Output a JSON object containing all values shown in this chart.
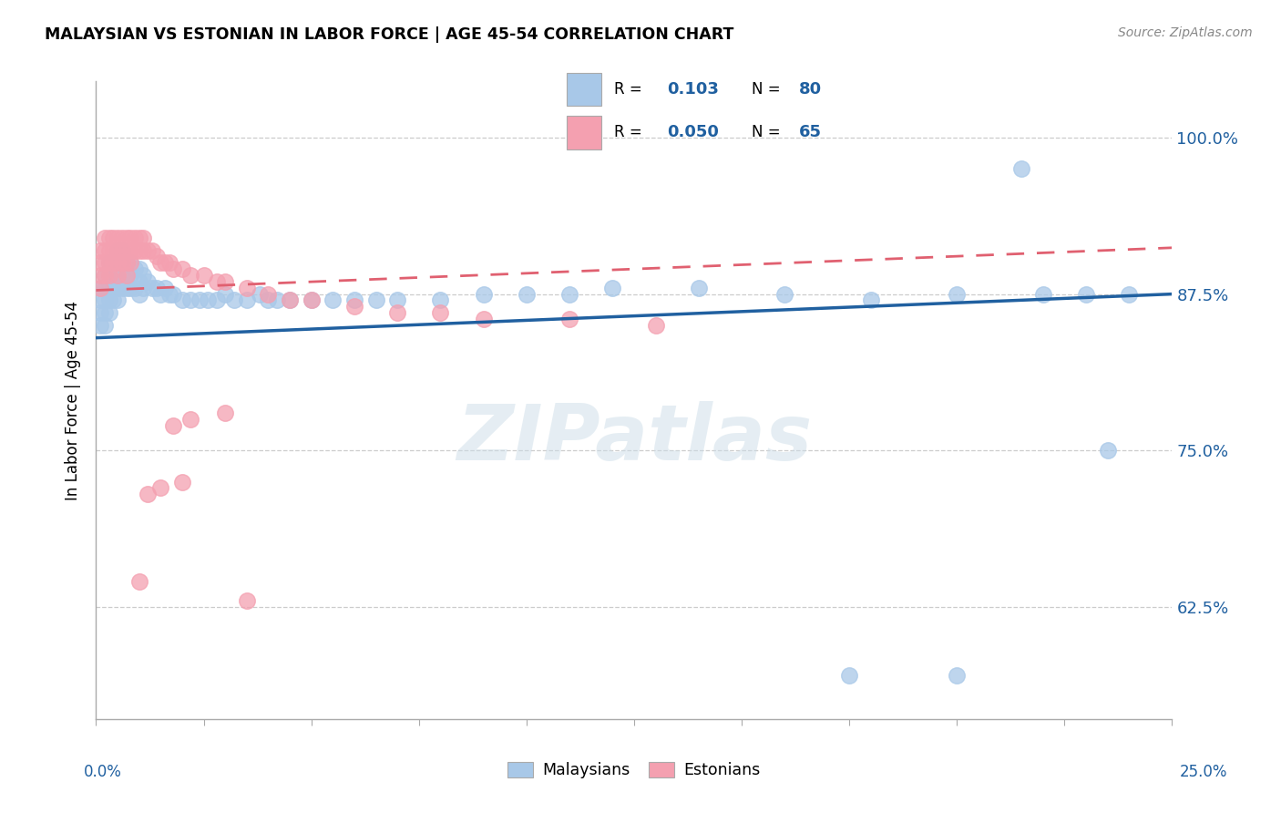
{
  "title": "MALAYSIAN VS ESTONIAN IN LABOR FORCE | AGE 45-54 CORRELATION CHART",
  "source": "Source: ZipAtlas.com",
  "ylabel": "In Labor Force | Age 45-54",
  "ytick_labels": [
    "62.5%",
    "75.0%",
    "87.5%",
    "100.0%"
  ],
  "ytick_values": [
    0.625,
    0.75,
    0.875,
    1.0
  ],
  "xmin": 0.0,
  "xmax": 0.25,
  "ymin": 0.535,
  "ymax": 1.045,
  "blue_scatter_color": "#a8c8e8",
  "pink_scatter_color": "#f4a0b0",
  "blue_line_color": "#2060a0",
  "pink_line_color": "#e06070",
  "label_color": "#2060a0",
  "legend_R_blue": "0.103",
  "legend_N_blue": "80",
  "legend_R_pink": "0.050",
  "legend_N_pink": "65",
  "watermark": "ZIPatlas",
  "grid_color": "#cccccc",
  "blue_x": [
    0.001,
    0.001,
    0.001,
    0.001,
    0.002,
    0.002,
    0.002,
    0.002,
    0.002,
    0.003,
    0.003,
    0.003,
    0.003,
    0.003,
    0.004,
    0.004,
    0.004,
    0.004,
    0.005,
    0.005,
    0.005,
    0.005,
    0.005,
    0.006,
    0.006,
    0.006,
    0.006,
    0.007,
    0.007,
    0.007,
    0.008,
    0.008,
    0.008,
    0.009,
    0.009,
    0.01,
    0.01,
    0.01,
    0.011,
    0.011,
    0.012,
    0.013,
    0.014,
    0.015,
    0.016,
    0.017,
    0.018,
    0.02,
    0.022,
    0.024,
    0.026,
    0.028,
    0.03,
    0.032,
    0.035,
    0.038,
    0.04,
    0.042,
    0.045,
    0.05,
    0.055,
    0.06,
    0.065,
    0.07,
    0.08,
    0.09,
    0.1,
    0.11,
    0.12,
    0.14,
    0.16,
    0.18,
    0.2,
    0.215,
    0.22,
    0.23,
    0.235,
    0.24,
    0.2,
    0.175
  ],
  "blue_y": [
    0.88,
    0.87,
    0.86,
    0.85,
    0.89,
    0.88,
    0.87,
    0.86,
    0.85,
    0.9,
    0.89,
    0.88,
    0.87,
    0.86,
    0.9,
    0.89,
    0.88,
    0.87,
    0.91,
    0.9,
    0.89,
    0.88,
    0.87,
    0.91,
    0.9,
    0.89,
    0.88,
    0.9,
    0.89,
    0.88,
    0.9,
    0.89,
    0.88,
    0.895,
    0.88,
    0.895,
    0.885,
    0.875,
    0.89,
    0.88,
    0.885,
    0.88,
    0.88,
    0.875,
    0.88,
    0.875,
    0.875,
    0.87,
    0.87,
    0.87,
    0.87,
    0.87,
    0.875,
    0.87,
    0.87,
    0.875,
    0.87,
    0.87,
    0.87,
    0.87,
    0.87,
    0.87,
    0.87,
    0.87,
    0.87,
    0.875,
    0.875,
    0.875,
    0.88,
    0.88,
    0.875,
    0.87,
    0.875,
    0.975,
    0.875,
    0.875,
    0.75,
    0.875,
    0.57,
    0.57
  ],
  "pink_x": [
    0.001,
    0.001,
    0.001,
    0.001,
    0.002,
    0.002,
    0.002,
    0.002,
    0.003,
    0.003,
    0.003,
    0.003,
    0.004,
    0.004,
    0.004,
    0.005,
    0.005,
    0.005,
    0.005,
    0.006,
    0.006,
    0.006,
    0.007,
    0.007,
    0.007,
    0.007,
    0.008,
    0.008,
    0.008,
    0.009,
    0.009,
    0.01,
    0.01,
    0.011,
    0.011,
    0.012,
    0.013,
    0.014,
    0.015,
    0.016,
    0.017,
    0.018,
    0.02,
    0.022,
    0.025,
    0.028,
    0.03,
    0.035,
    0.04,
    0.045,
    0.05,
    0.06,
    0.07,
    0.08,
    0.09,
    0.11,
    0.13,
    0.018,
    0.022,
    0.03,
    0.02,
    0.015,
    0.012,
    0.01,
    0.035
  ],
  "pink_y": [
    0.91,
    0.9,
    0.89,
    0.88,
    0.92,
    0.91,
    0.9,
    0.89,
    0.92,
    0.91,
    0.9,
    0.89,
    0.92,
    0.91,
    0.9,
    0.92,
    0.91,
    0.9,
    0.89,
    0.92,
    0.91,
    0.9,
    0.92,
    0.91,
    0.9,
    0.89,
    0.92,
    0.91,
    0.9,
    0.92,
    0.91,
    0.92,
    0.91,
    0.92,
    0.91,
    0.91,
    0.91,
    0.905,
    0.9,
    0.9,
    0.9,
    0.895,
    0.895,
    0.89,
    0.89,
    0.885,
    0.885,
    0.88,
    0.875,
    0.87,
    0.87,
    0.865,
    0.86,
    0.86,
    0.855,
    0.855,
    0.85,
    0.77,
    0.775,
    0.78,
    0.725,
    0.72,
    0.715,
    0.645,
    0.63
  ],
  "blue_trend_x0": 0.0,
  "blue_trend_x1": 0.25,
  "blue_trend_y0": 0.84,
  "blue_trend_y1": 0.875,
  "pink_trend_x0": 0.0,
  "pink_trend_x1": 0.25,
  "pink_trend_y0": 0.878,
  "pink_trend_y1": 0.912
}
